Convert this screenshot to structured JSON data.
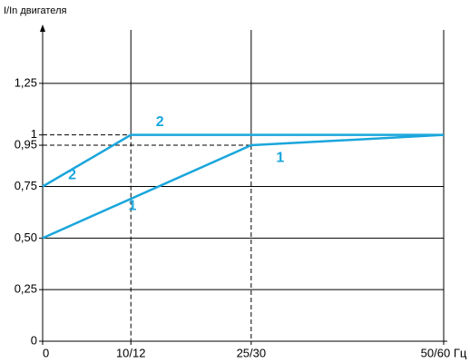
{
  "chart_data": {
    "type": "line",
    "ylabel": "I/In двигателя",
    "xlim": [
      0,
      50
    ],
    "xticks": [
      0,
      {
        "value": 11,
        "label": "10/12"
      },
      {
        "value": 26,
        "label": "25/30"
      },
      {
        "value": 50,
        "label": "50/60 Гц"
      }
    ],
    "ylim": [
      0,
      1.5
    ],
    "yticks": [
      0,
      {
        "value": 0.25,
        "label": "0,25"
      },
      {
        "value": 0.5,
        "label": "0,50"
      },
      {
        "value": 0.75,
        "label": "0,75"
      },
      {
        "value": 0.95,
        "label": "0,95"
      },
      1,
      {
        "value": 1.25,
        "label": "1,25"
      }
    ],
    "grid": true,
    "series": [
      {
        "name": "1",
        "color": "#1aa6dc",
        "x": [
          0,
          26,
          50
        ],
        "values": [
          0.5,
          0.95,
          1
        ]
      },
      {
        "name": "2",
        "color": "#1aa6dc",
        "x": [
          0,
          11,
          50
        ],
        "values": [
          0.75,
          1,
          1
        ]
      }
    ]
  }
}
